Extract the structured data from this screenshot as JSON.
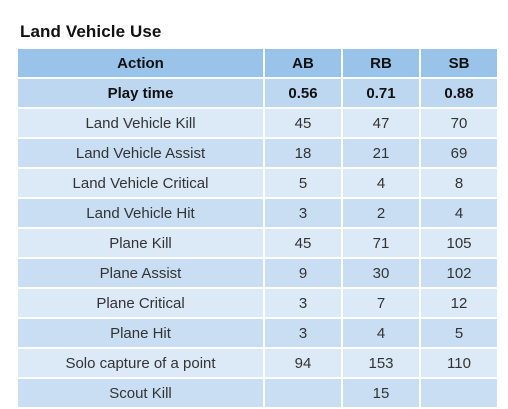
{
  "title": "Land Vehicle Use",
  "table": {
    "headers": [
      "Action",
      "AB",
      "RB",
      "SB"
    ],
    "rows": [
      [
        "Play time",
        "0.56",
        "0.71",
        "0.88"
      ],
      [
        "Land Vehicle Kill",
        "45",
        "47",
        "70"
      ],
      [
        "Land Vehicle Assist",
        "18",
        "21",
        "69"
      ],
      [
        "Land Vehicle Critical",
        "5",
        "4",
        "8"
      ],
      [
        "Land Vehicle Hit",
        "3",
        "2",
        "4"
      ],
      [
        "Plane Kill",
        "45",
        "71",
        "105"
      ],
      [
        "Plane Assist",
        "9",
        "30",
        "102"
      ],
      [
        "Plane Critical",
        "3",
        "7",
        "12"
      ],
      [
        "Plane Hit",
        "3",
        "4",
        "5"
      ],
      [
        "Solo capture of a point",
        "94",
        "153",
        "110"
      ],
      [
        "Scout Kill",
        "",
        "15",
        ""
      ]
    ]
  },
  "colors": {
    "header_bg": "#9ac3ea",
    "highlight_row_bg": "#bdd7f1",
    "row_light_bg": "#dce9f7",
    "row_dark_bg": "#c9def3"
  }
}
